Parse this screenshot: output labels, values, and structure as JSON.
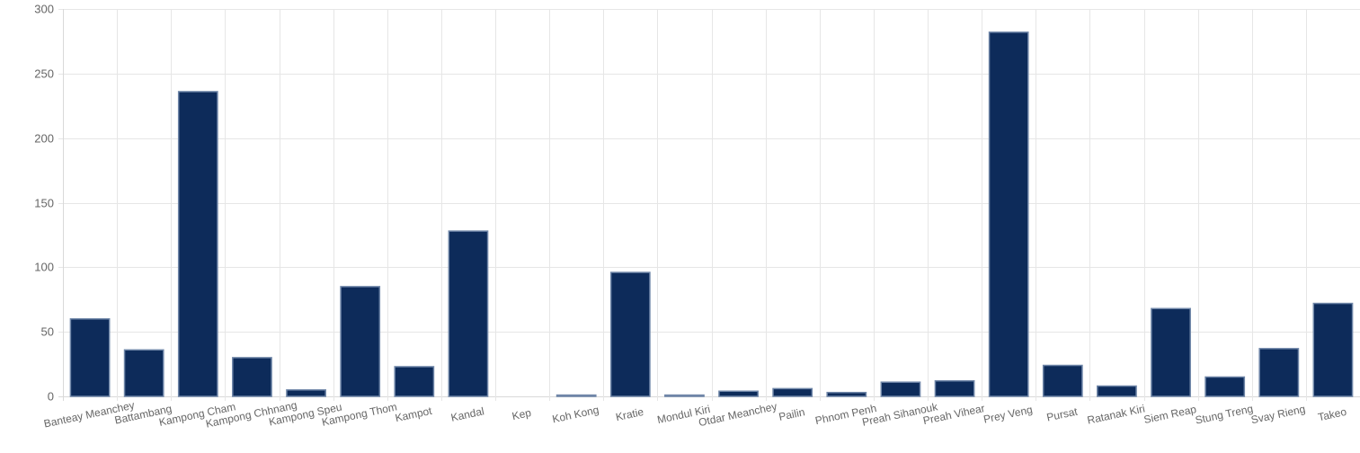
{
  "chart_data": {
    "type": "bar",
    "title": "",
    "xlabel": "",
    "ylabel": "",
    "ylim": [
      0,
      300
    ],
    "yticks": [
      0,
      50,
      100,
      150,
      200,
      250,
      300
    ],
    "grid": true,
    "legend": "none",
    "bar_color": "#0d2b5a",
    "bar_border_color": "#6f86a8",
    "categories": [
      "Banteay Meanchey",
      "Battambang",
      "Kampong Cham",
      "Kampong Chhnang",
      "Kampong Speu",
      "Kampong Thom",
      "Kampot",
      "Kandal",
      "Kep",
      "Koh Kong",
      "Kratie",
      "Mondul Kiri",
      "Otdar Meanchey",
      "Pailin",
      "Phnom Penh",
      "Preah Sihanouk",
      "Preah Vihear",
      "Prey Veng",
      "Pursat",
      "Ratanak Kiri",
      "Siem Reap",
      "Stung Treng",
      "Svay Rieng",
      "Takeo"
    ],
    "values": [
      60,
      36,
      236,
      30,
      5,
      85,
      23,
      128,
      0,
      1,
      96,
      1,
      4,
      6,
      3,
      11,
      12,
      282,
      24,
      8,
      68,
      15,
      37,
      72
    ]
  }
}
